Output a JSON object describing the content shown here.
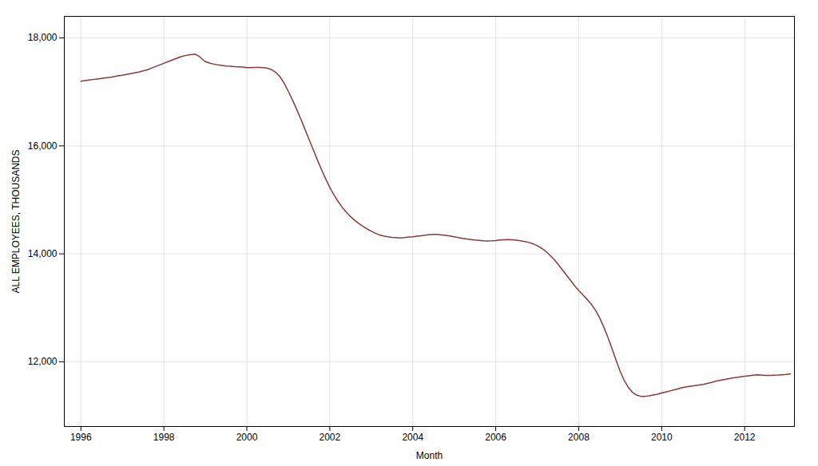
{
  "chart_data": {
    "type": "line",
    "xlabel": "Month",
    "ylabel": "ALL EMPLOYEES, THOUSANDS",
    "color": "#8B3A3A",
    "xlim": [
      1995.6,
      2013.2
    ],
    "ylim": [
      10800,
      18400
    ],
    "xticks": [
      1996,
      1998,
      2000,
      2002,
      2004,
      2006,
      2008,
      2010,
      2012
    ],
    "yticks": [
      {
        "value": 12000,
        "label": "12,000"
      },
      {
        "value": 14000,
        "label": "14,000"
      },
      {
        "value": 16000,
        "label": "16,000"
      },
      {
        "value": 18000,
        "label": "18,000"
      }
    ],
    "grid": true,
    "x": [
      1996.0,
      1996.1,
      1996.2,
      1996.3,
      1996.4,
      1996.5,
      1996.6,
      1996.7,
      1996.8,
      1996.9,
      1997.0,
      1997.1,
      1997.2,
      1997.3,
      1997.4,
      1997.5,
      1997.6,
      1997.7,
      1997.8,
      1997.9,
      1998.0,
      1998.1,
      1998.2,
      1998.3,
      1998.4,
      1998.5,
      1998.6,
      1998.7,
      1998.75,
      1998.85,
      1998.95,
      1999.0,
      1999.1,
      1999.2,
      1999.3,
      1999.4,
      1999.5,
      1999.6,
      1999.7,
      1999.8,
      1999.9,
      2000.0,
      2000.1,
      2000.2,
      2000.3,
      2000.4,
      2000.5,
      2000.6,
      2000.7,
      2000.8,
      2000.9,
      2001.0,
      2001.1,
      2001.2,
      2001.3,
      2001.4,
      2001.5,
      2001.6,
      2001.7,
      2001.8,
      2001.9,
      2002.0,
      2002.1,
      2002.2,
      2002.3,
      2002.4,
      2002.5,
      2002.6,
      2002.7,
      2002.8,
      2002.9,
      2003.0,
      2003.1,
      2003.2,
      2003.3,
      2003.4,
      2003.5,
      2003.6,
      2003.7,
      2003.8,
      2003.9,
      2004.0,
      2004.1,
      2004.2,
      2004.3,
      2004.4,
      2004.5,
      2004.6,
      2004.7,
      2004.8,
      2004.9,
      2005.0,
      2005.1,
      2005.2,
      2005.3,
      2005.4,
      2005.5,
      2005.6,
      2005.7,
      2005.8,
      2005.9,
      2006.0,
      2006.1,
      2006.2,
      2006.3,
      2006.4,
      2006.5,
      2006.6,
      2006.7,
      2006.8,
      2006.9,
      2007.0,
      2007.1,
      2007.2,
      2007.3,
      2007.4,
      2007.5,
      2007.6,
      2007.7,
      2007.8,
      2007.9,
      2008.0,
      2008.1,
      2008.2,
      2008.3,
      2008.4,
      2008.5,
      2008.6,
      2008.7,
      2008.8,
      2008.9,
      2009.0,
      2009.1,
      2009.2,
      2009.3,
      2009.4,
      2009.5,
      2009.6,
      2009.7,
      2009.8,
      2009.9,
      2010.0,
      2010.1,
      2010.2,
      2010.3,
      2010.4,
      2010.5,
      2010.6,
      2010.7,
      2010.8,
      2010.9,
      2011.0,
      2011.1,
      2011.2,
      2011.3,
      2011.4,
      2011.5,
      2011.6,
      2011.7,
      2011.8,
      2011.9,
      2012.0,
      2012.1,
      2012.2,
      2012.3,
      2012.4,
      2012.5,
      2012.6,
      2012.7,
      2012.8,
      2012.9,
      2013.0,
      2013.1
    ],
    "values": [
      17200,
      17210,
      17220,
      17230,
      17240,
      17250,
      17260,
      17270,
      17285,
      17300,
      17310,
      17325,
      17340,
      17355,
      17370,
      17390,
      17410,
      17440,
      17470,
      17500,
      17530,
      17560,
      17590,
      17620,
      17650,
      17670,
      17685,
      17695,
      17700,
      17660,
      17590,
      17560,
      17535,
      17515,
      17500,
      17490,
      17480,
      17475,
      17470,
      17465,
      17460,
      17450,
      17450,
      17455,
      17455,
      17450,
      17440,
      17410,
      17360,
      17280,
      17160,
      17010,
      16850,
      16680,
      16500,
      16310,
      16120,
      15930,
      15740,
      15560,
      15390,
      15230,
      15090,
      14970,
      14860,
      14770,
      14690,
      14620,
      14560,
      14510,
      14460,
      14420,
      14380,
      14350,
      14330,
      14315,
      14305,
      14300,
      14295,
      14300,
      14310,
      14315,
      14325,
      14335,
      14345,
      14355,
      14360,
      14358,
      14350,
      14340,
      14330,
      14315,
      14300,
      14285,
      14275,
      14265,
      14255,
      14248,
      14242,
      14238,
      14240,
      14245,
      14255,
      14260,
      14262,
      14260,
      14252,
      14242,
      14228,
      14210,
      14185,
      14150,
      14105,
      14050,
      13980,
      13900,
      13810,
      13710,
      13610,
      13510,
      13410,
      13320,
      13240,
      13160,
      13070,
      12960,
      12820,
      12650,
      12460,
      12250,
      12030,
      11820,
      11650,
      11520,
      11430,
      11380,
      11360,
      11360,
      11370,
      11385,
      11400,
      11420,
      11440,
      11460,
      11480,
      11500,
      11520,
      11535,
      11548,
      11558,
      11568,
      11580,
      11598,
      11618,
      11638,
      11655,
      11670,
      11685,
      11698,
      11710,
      11720,
      11730,
      11740,
      11750,
      11758,
      11755,
      11748,
      11748,
      11750,
      11752,
      11758,
      11765,
      11775
    ]
  }
}
